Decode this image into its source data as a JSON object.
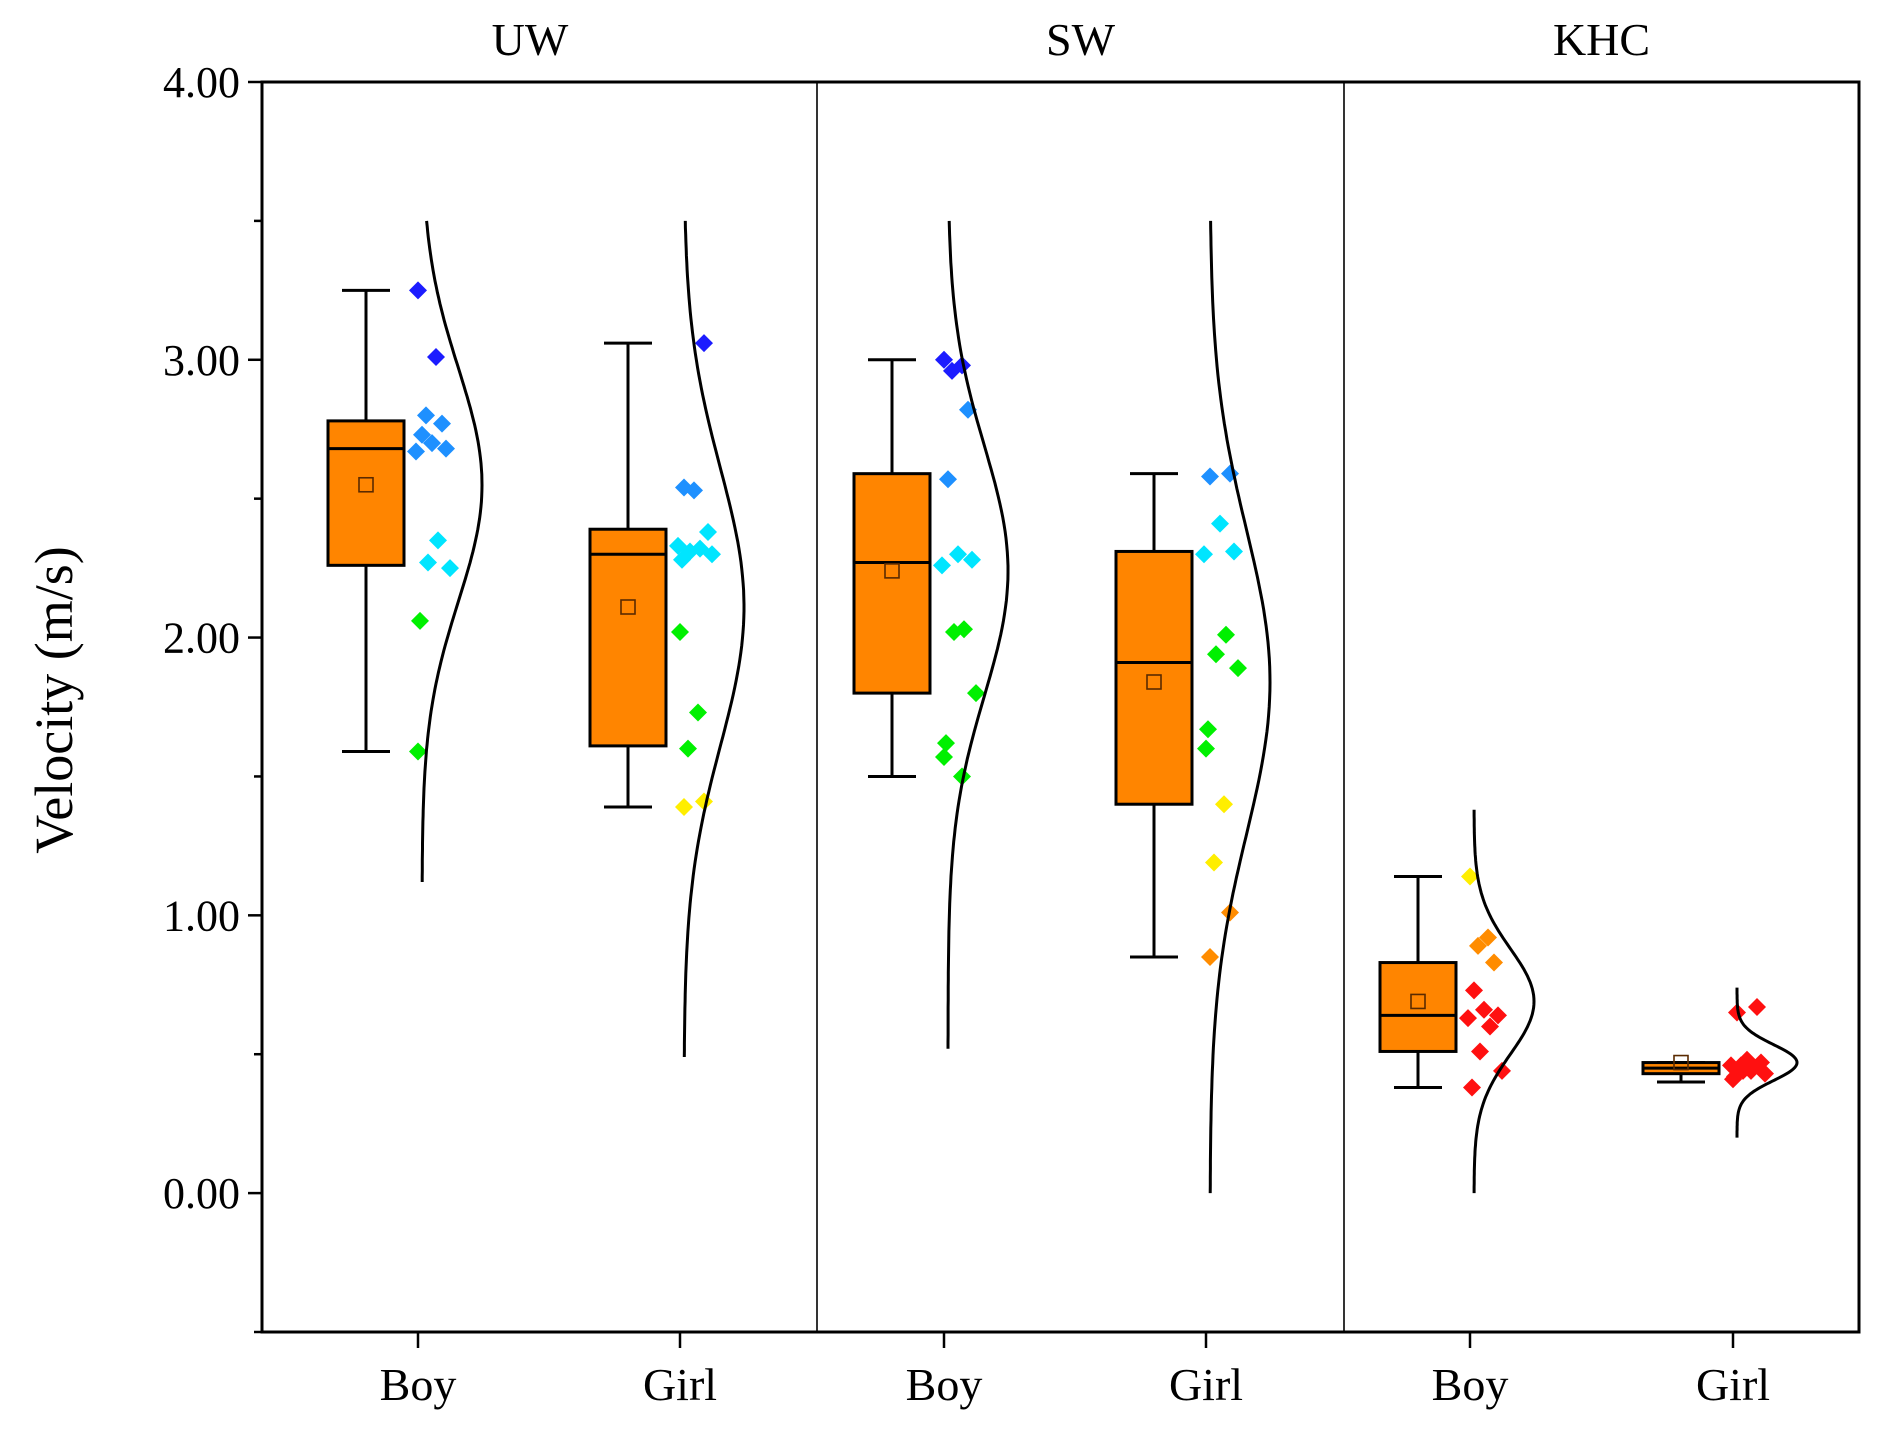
{
  "chart_data": {
    "type": "box",
    "ylabel": "Velocity (m/s)",
    "xlabel": "",
    "ylim": [
      -0.5,
      4.0
    ],
    "yticks": [
      "0.00",
      "1.00",
      "2.00",
      "3.00",
      "4.00"
    ],
    "grid": false,
    "colors": {
      "box_fill": "#ff8500",
      "lines": "#000000"
    },
    "panels": [
      {
        "title": "UW",
        "groups": [
          {
            "label": "Boy",
            "box": {
              "whisker_low": 1.59,
              "q1": 2.26,
              "median": 2.68,
              "q3": 2.78,
              "whisker_high": 3.25,
              "mean": 2.55
            },
            "points": [
              3.25,
              3.01,
              2.8,
              2.77,
              2.73,
              2.7,
              2.68,
              2.67,
              2.35,
              2.27,
              2.25,
              2.06,
              1.59
            ],
            "curve": {
              "mean": 2.55,
              "sd": 0.42,
              "from": 1.12,
              "to": 3.5
            }
          },
          {
            "label": "Girl",
            "box": {
              "whisker_low": 1.39,
              "q1": 1.61,
              "median": 2.3,
              "q3": 2.39,
              "whisker_high": 3.06,
              "mean": 2.11
            },
            "points": [
              3.06,
              2.54,
              2.53,
              2.38,
              2.33,
              2.32,
              2.31,
              2.3,
              2.28,
              2.02,
              1.73,
              1.6,
              1.41,
              1.39
            ],
            "curve": {
              "mean": 2.11,
              "sd": 0.5,
              "from": 0.49,
              "to": 3.5
            }
          }
        ]
      },
      {
        "title": "SW",
        "groups": [
          {
            "label": "Boy",
            "box": {
              "whisker_low": 1.5,
              "q1": 1.8,
              "median": 2.27,
              "q3": 2.59,
              "whisker_high": 3.0,
              "mean": 2.24
            },
            "points": [
              3.0,
              2.98,
              2.96,
              2.82,
              2.57,
              2.3,
              2.28,
              2.26,
              2.03,
              2.02,
              1.8,
              1.62,
              1.57,
              1.5
            ],
            "curve": {
              "mean": 2.24,
              "sd": 0.45,
              "from": 0.52,
              "to": 3.5
            }
          },
          {
            "label": "Girl",
            "box": {
              "whisker_low": 0.85,
              "q1": 1.4,
              "median": 1.91,
              "q3": 2.31,
              "whisker_high": 2.59,
              "mean": 1.84
            },
            "points": [
              2.59,
              2.58,
              2.41,
              2.31,
              2.3,
              2.01,
              1.94,
              1.89,
              1.67,
              1.6,
              1.4,
              1.19,
              1.01,
              0.85
            ],
            "curve": {
              "mean": 1.84,
              "sd": 0.55,
              "from": 0.0,
              "to": 3.5
            }
          }
        ]
      },
      {
        "title": "KHC",
        "groups": [
          {
            "label": "Boy",
            "box": {
              "whisker_low": 0.38,
              "q1": 0.51,
              "median": 0.64,
              "q3": 0.83,
              "whisker_high": 1.14,
              "mean": 0.69
            },
            "points": [
              1.14,
              0.92,
              0.89,
              0.83,
              0.73,
              0.66,
              0.64,
              0.63,
              0.6,
              0.51,
              0.44,
              0.38
            ],
            "curve": {
              "mean": 0.69,
              "sd": 0.19,
              "from": 0.0,
              "to": 1.38
            }
          },
          {
            "label": "Girl",
            "box": {
              "whisker_low": 0.4,
              "q1": 0.43,
              "median": 0.45,
              "q3": 0.47,
              "whisker_high": 0.47,
              "mean": 0.47
            },
            "points": [
              0.67,
              0.65,
              0.48,
              0.47,
              0.46,
              0.45,
              0.44,
              0.43,
              0.42,
              0.41,
              0.44,
              0.46
            ],
            "curve": {
              "mean": 0.47,
              "sd": 0.065,
              "from": 0.2,
              "to": 0.74
            }
          }
        ]
      }
    ]
  }
}
